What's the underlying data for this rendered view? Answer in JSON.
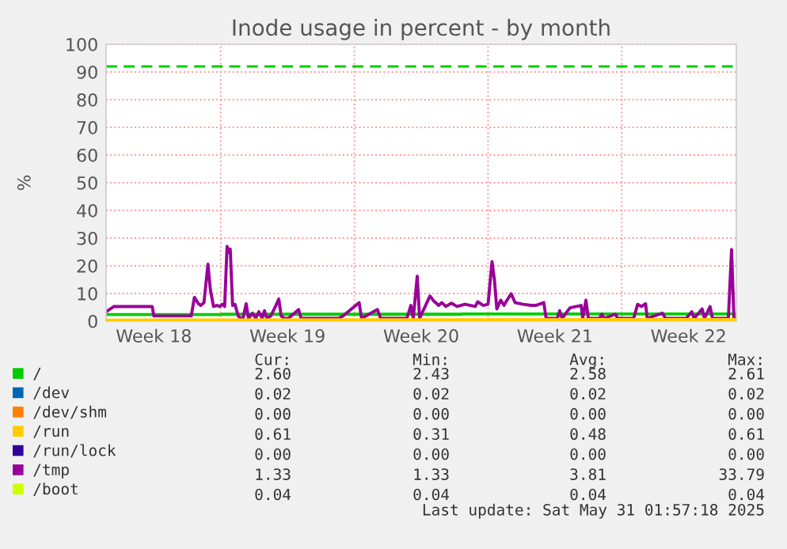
{
  "chart_data": {
    "type": "line",
    "title": "Inode usage in percent - by month",
    "ylabel": "%",
    "xlim": [
      "2025-04-29T00:00",
      "2025-06-01T00:00"
    ],
    "ylim": [
      0,
      100
    ],
    "xticks": [
      {
        "value": "2025-05-01T12:00",
        "label": "Week 18"
      },
      {
        "value": "2025-05-05T00:00",
        "label": null
      },
      {
        "value": "2025-05-08T12:00",
        "label": "Week 19"
      },
      {
        "value": "2025-05-12T00:00",
        "label": null
      },
      {
        "value": "2025-05-15T12:00",
        "label": "Week 20"
      },
      {
        "value": "2025-05-19T00:00",
        "label": null
      },
      {
        "value": "2025-05-22T12:00",
        "label": "Week 21"
      },
      {
        "value": "2025-05-26T00:00",
        "label": null
      },
      {
        "value": "2025-05-29T12:00",
        "label": "Week 22"
      }
    ],
    "yticks": [
      0,
      10,
      20,
      30,
      40,
      50,
      60,
      70,
      80,
      90,
      100
    ],
    "grid": true,
    "legend": "bottom",
    "ref_lines": [
      {
        "axis": "y",
        "value": 92,
        "color": "#00cc00",
        "line_style": "dashed"
      }
    ],
    "series": [
      {
        "name": "/",
        "color": "#00cc00",
        "x": [
          "2025-04-29T00:00",
          "2025-05-05T00:00",
          "2025-05-05T02:00",
          "2025-05-17T14:00",
          "2025-05-17T17:00",
          "2025-06-01T00:00"
        ],
        "values": [
          2.4,
          2.4,
          2.5,
          2.5,
          2.6,
          2.6
        ]
      },
      {
        "name": "/dev",
        "color": "#0066b3",
        "values": [
          null
        ]
      },
      {
        "name": "/dev/shm",
        "color": "#ff8000",
        "values": [
          null
        ]
      },
      {
        "name": "/run",
        "color": "#ffcc00",
        "x": [
          "2025-04-29T00:00",
          "2025-05-15T00:00",
          "2025-06-01T00:00"
        ],
        "values": [
          0.4,
          0.5,
          0.6
        ]
      },
      {
        "name": "/run/lock",
        "color": "#330099",
        "values": [
          null
        ]
      },
      {
        "name": "/tmp",
        "color": "#990099",
        "x": [
          "2025-04-29T00:00",
          "2025-04-29T10:00",
          "2025-05-01T10:00",
          "2025-05-01T12:00",
          "2025-05-03T11:00",
          "2025-05-03T15:00",
          "2025-05-03T20:00",
          "2025-05-03T23:00",
          "2025-05-04T03:00",
          "2025-05-04T08:00",
          "2025-05-04T11:00",
          "2025-05-04T15:00",
          "2025-05-04T19:00",
          "2025-05-04T23:00",
          "2025-05-05T02:00",
          "2025-05-05T05:00",
          "2025-05-05T08:00",
          "2025-05-05T11:00",
          "2025-05-05T12:00",
          "2025-05-05T15:00",
          "2025-05-05T18:00",
          "2025-05-05T22:00",
          "2025-05-06T01:00",
          "2025-05-06T04:00",
          "2025-05-06T08:00",
          "2025-05-06T11:00",
          "2025-05-06T16:00",
          "2025-05-06T20:00",
          "2025-05-07T00:00",
          "2025-05-07T04:00",
          "2025-05-07T07:00",
          "2025-05-07T10:00",
          "2025-05-07T15:00",
          "2025-05-07T20:00",
          "2025-05-08T01:00",
          "2025-05-08T04:00",
          "2025-05-08T08:00",
          "2025-05-08T13:00",
          "2025-05-09T02:00",
          "2025-05-09T05:00",
          "2025-05-10T01:00",
          "2025-05-11T04:00",
          "2025-05-11T10:00",
          "2025-05-12T06:00",
          "2025-05-12T09:00",
          "2025-05-13T05:00",
          "2025-05-13T09:00",
          "2025-05-14T18:00",
          "2025-05-14T23:00",
          "2025-05-15T02:00",
          "2025-05-15T07:00",
          "2025-05-15T10:00",
          "2025-05-15T23:00",
          "2025-05-16T04:00",
          "2025-05-16T10:00",
          "2025-05-16T14:00",
          "2025-05-16T19:00",
          "2025-05-17T02:00",
          "2025-05-17T09:00",
          "2025-05-17T19:00",
          "2025-05-18T08:00",
          "2025-05-18T11:00",
          "2025-05-18T18:00",
          "2025-05-19T00:00",
          "2025-05-19T05:00",
          "2025-05-19T08:00",
          "2025-05-19T11:00",
          "2025-05-19T16:00",
          "2025-05-19T20:00",
          "2025-05-19T23:00",
          "2025-05-20T05:00",
          "2025-05-20T10:00",
          "2025-05-20T20:00",
          "2025-05-21T06:00",
          "2025-05-21T12:00",
          "2025-05-21T22:00",
          "2025-05-22T01:00",
          "2025-05-22T15:00",
          "2025-05-22T18:00",
          "2025-05-22T21:00",
          "2025-05-23T07:00",
          "2025-05-23T21:00",
          "2025-05-23T23:00",
          "2025-05-24T03:00",
          "2025-05-24T06:00",
          "2025-05-24T20:00",
          "2025-05-24T23:00",
          "2025-05-25T02:00",
          "2025-05-25T16:00",
          "2025-05-25T19:00",
          "2025-05-26T15:00",
          "2025-05-26T20:00",
          "2025-05-27T01:00",
          "2025-05-27T06:00",
          "2025-05-27T08:00",
          "2025-05-28T03:00",
          "2025-05-28T07:00",
          "2025-05-29T09:00",
          "2025-05-29T16:00",
          "2025-05-29T19:00",
          "2025-05-30T05:00",
          "2025-05-30T08:00",
          "2025-05-30T15:00",
          "2025-05-30T18:00",
          "2025-05-31T14:00",
          "2025-05-31T18:00",
          "2025-05-31T21:00",
          "2025-06-01T00:00"
        ],
        "values": [
          3.4,
          5.3,
          5.3,
          1.9,
          1.9,
          8.6,
          6.3,
          5.7,
          6.7,
          20.6,
          11.4,
          5.3,
          5.7,
          5.3,
          6.1,
          5.3,
          27,
          24.8,
          26,
          5.7,
          6.1,
          1.9,
          1.0,
          1.0,
          6.3,
          1.0,
          2.9,
          1.0,
          3.4,
          1.0,
          3.8,
          1.0,
          1.9,
          4.8,
          8.0,
          1.9,
          1.0,
          1.0,
          4.2,
          1.0,
          1.0,
          1.0,
          1.9,
          6.7,
          1.0,
          4.2,
          1.0,
          1.0,
          5.7,
          1.0,
          16.2,
          1.0,
          9.1,
          7.2,
          5.7,
          6.7,
          5.3,
          6.5,
          5.3,
          6.1,
          5.3,
          7.0,
          5.7,
          6.1,
          21.5,
          15.0,
          4.4,
          7.6,
          5.7,
          7.2,
          9.9,
          6.7,
          6.1,
          5.7,
          5.7,
          6.7,
          1.0,
          1.0,
          3.8,
          1.0,
          4.8,
          5.7,
          1.0,
          7.6,
          1.0,
          1.0,
          2.5,
          1.0,
          2.5,
          1.0,
          1.0,
          6.1,
          5.3,
          6.3,
          1.0,
          2.9,
          1.0,
          1.0,
          3.4,
          1.0,
          4.4,
          1.0,
          5.3,
          1.0,
          1.0,
          25.9,
          1.0,
          1.3
        ]
      },
      {
        "name": "/boot",
        "color": "#ccff00",
        "values": [
          null
        ]
      }
    ],
    "annotations": [
      "Cur:",
      "Min:",
      "Avg:",
      "Max:",
      "2.60",
      "2.43",
      "2.58",
      "2.61",
      "0.02",
      "0.02",
      "0.02",
      "0.02",
      "0.00",
      "0.00",
      "0.00",
      "0.00",
      "0.61",
      "0.31",
      "0.48",
      "0.61",
      "0.00",
      "0.00",
      "0.00",
      "0.00",
      "1.33",
      "1.33",
      "3.81",
      "33.79",
      "0.04",
      "0.04",
      "0.04",
      "0.04",
      "Last update: Sat May 31 01:57:18 2025"
    ]
  }
}
